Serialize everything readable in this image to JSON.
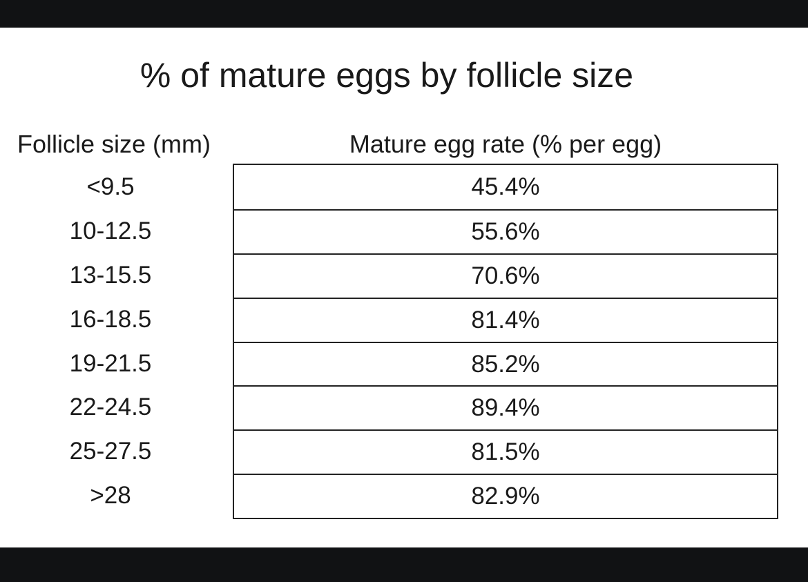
{
  "title": "% of mature eggs by follicle size",
  "table": {
    "headers": [
      "Follicle size (mm)",
      "Mature egg rate (% per egg)"
    ],
    "rows": [
      [
        "<9.5",
        "45.4%"
      ],
      [
        "10-12.5",
        "55.6%"
      ],
      [
        "13-15.5",
        "70.6%"
      ],
      [
        "16-18.5",
        "81.4%"
      ],
      [
        "19-21.5",
        "85.2%"
      ],
      [
        "22-24.5",
        "89.4%"
      ],
      [
        "25-27.5",
        "81.5%"
      ],
      [
        ">28",
        "82.9%"
      ]
    ]
  }
}
